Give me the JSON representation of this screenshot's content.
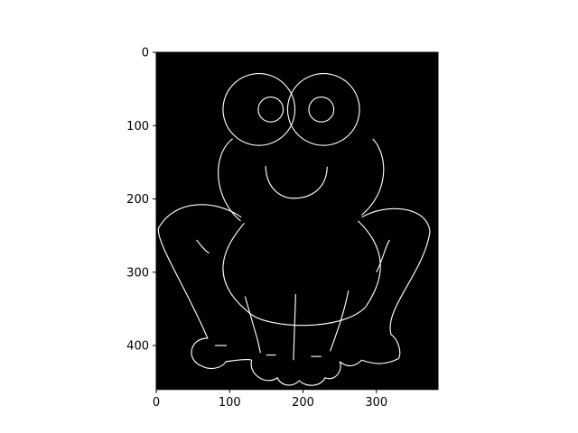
{
  "chart_data": {
    "type": "image",
    "title": "",
    "xlabel": "",
    "ylabel": "",
    "image_width": 384,
    "image_height": 460,
    "xlim": [
      0,
      384
    ],
    "ylim": [
      460,
      0
    ],
    "x_ticks": [
      0,
      100,
      200,
      300
    ],
    "y_ticks": [
      0,
      100,
      200,
      300,
      400
    ],
    "x_tick_labels": [
      "0",
      "100",
      "200",
      "300"
    ],
    "y_tick_labels": [
      "0",
      "100",
      "200",
      "300",
      "400"
    ],
    "image_content": "edge map of a cartoon frog",
    "colors": {
      "background": "#000000",
      "edges": "#ffffff",
      "axis": "#000000"
    }
  }
}
